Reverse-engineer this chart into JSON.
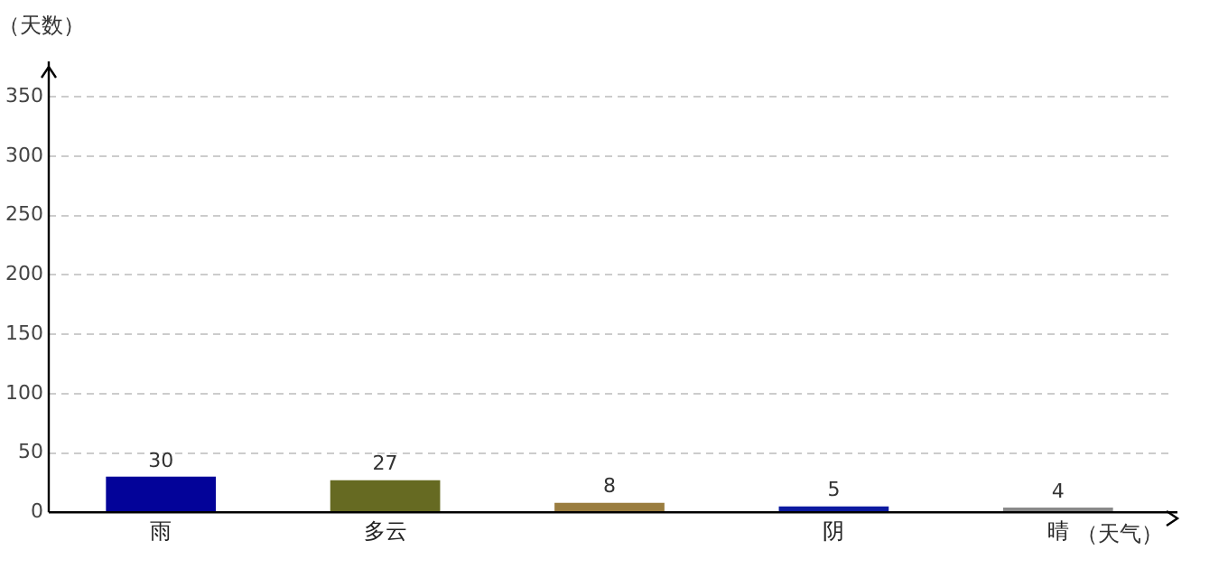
{
  "chart_data": {
    "type": "bar",
    "ylabel": "（天数）",
    "xlabel": "（天气）",
    "categories": [
      "雨",
      "多云",
      null,
      "阴",
      "晴"
    ],
    "values": [
      30,
      27,
      8,
      5,
      4
    ],
    "colors": [
      "#030399",
      "#666a22",
      "#9a7d40",
      "#0c1aa0",
      "#8a8a8a"
    ],
    "ylim": [
      0,
      380
    ],
    "yticks": [
      0,
      50,
      100,
      150,
      200,
      250,
      300,
      350
    ],
    "grid": "y",
    "data_labels": true,
    "legend": false
  }
}
